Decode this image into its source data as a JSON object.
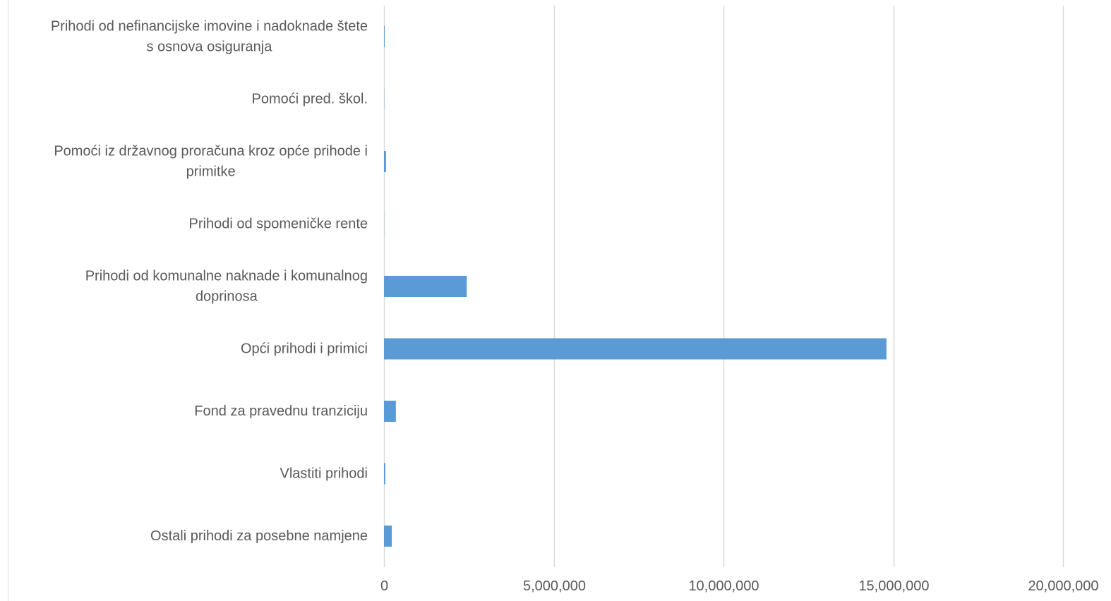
{
  "chart_data": {
    "type": "bar",
    "orientation": "horizontal",
    "title": "",
    "xlabel": "",
    "ylabel": "",
    "xlim": [
      0,
      20000000
    ],
    "grid": true,
    "legend": "none",
    "categories": [
      "Prihodi od nefinancijske imovine i nadoknade štete s osnova osiguranja",
      "Pomoći pred. škol.",
      "Pomoći iz državnog proračuna kroz opće prihode i primitke",
      "Prihodi od spomeničke rente",
      "Prihodi od komunalne naknade i komunalnog doprinosa",
      "Opći prihodi i primici",
      "Fond za pravednu tranziciju",
      "Vlastiti prihodi",
      "Ostali prihodi za posebne namjene"
    ],
    "category_label_lines": [
      [
        "Prihodi od nefinancijske imovine i nadoknade štete",
        "s osnova osiguranja"
      ],
      [
        "Pomoći pred. škol."
      ],
      [
        "Pomoći iz državnog proračuna kroz opće prihode i",
        "primitke"
      ],
      [
        "Prihodi od spomeničke rente"
      ],
      [
        "Prihodi od komunalne naknade i komunalnog",
        "doprinosa"
      ],
      [
        "Opći prihodi i primici"
      ],
      [
        "Fond za pravednu tranziciju"
      ],
      [
        "Vlastiti prihodi"
      ],
      [
        "Ostali prihodi za posebne namjene"
      ]
    ],
    "values": [
      20000,
      5000,
      60000,
      3000,
      2440000,
      14800000,
      350000,
      40000,
      230000
    ],
    "ticks": [
      0,
      5000000,
      10000000,
      15000000,
      20000000
    ],
    "tick_labels": [
      "0",
      "5,000,000",
      "10,000,000",
      "15,000,000",
      "20,000,000"
    ],
    "colors": {
      "bar": "#5B9BD5",
      "grid": "#D9D9D9",
      "text": "#595959",
      "frame": "#D9D9D9"
    }
  }
}
